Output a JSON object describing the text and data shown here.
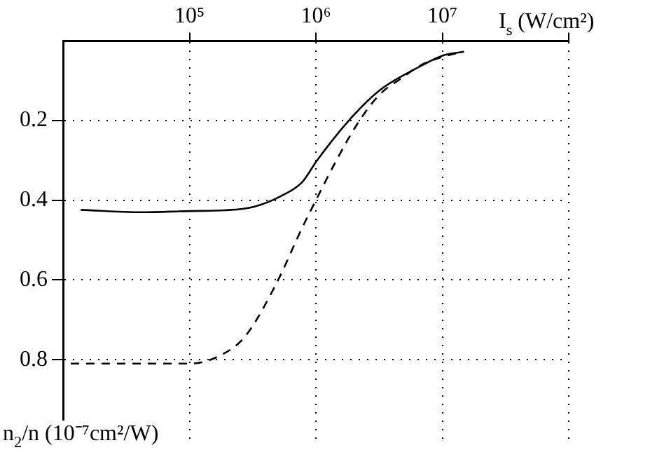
{
  "chart_data": {
    "type": "line",
    "xlabel": "I$_{s}$ (W/cm²)",
    "ylabel": "n$_{2}$/n (10⁻⁷cm²/W)",
    "log": "x",
    "xlim": [
      10000,
      100000000
    ],
    "xticks": [
      {
        "value": 100000,
        "label": "10⁵"
      },
      {
        "value": 1000000,
        "label": "10⁶"
      },
      {
        "value": 10000000,
        "label": "10⁷"
      },
      {
        "value": 100000000,
        "label": null
      }
    ],
    "ylim": [
      1,
      0
    ],
    "yticks": [
      0.2,
      0.4,
      0.6,
      0.8
    ],
    "grid": true,
    "marker": "none",
    "series": [
      {
        "color": "#000000",
        "line_style": "solid",
        "x": [
          13800,
          40700,
          100000,
          190500,
          316000,
          525000,
          776000,
          1020000,
          1820000,
          3160000,
          6760000,
          10000000,
          14800000
        ],
        "values": [
          0.424,
          0.43,
          0.427,
          0.425,
          0.417,
          0.39,
          0.355,
          0.3,
          0.2,
          0.125,
          0.063,
          0.037,
          0.027
        ]
      },
      {
        "color": "#000000",
        "line_style": "dashed",
        "x": [
          11500,
          40700,
          100000,
          166000,
          275000,
          490000,
          776000,
          1000000,
          1480000,
          2140000,
          3160000,
          4680000,
          6760000,
          10000000,
          14800000
        ],
        "values": [
          0.81,
          0.81,
          0.81,
          0.793,
          0.742,
          0.607,
          0.47,
          0.4,
          0.295,
          0.207,
          0.136,
          0.095,
          0.061,
          0.04,
          0.027
        ]
      }
    ]
  }
}
